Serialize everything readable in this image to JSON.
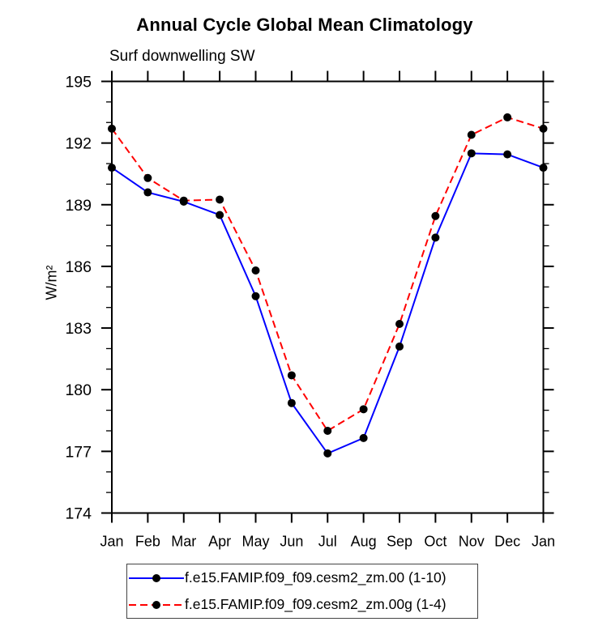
{
  "chart_data": {
    "type": "line",
    "title": "Annual Cycle Global Mean Climatology",
    "subtitle": "Surf downwelling SW",
    "ylabel": "W/m²",
    "xlabel": "",
    "categories": [
      "Jan",
      "Feb",
      "Mar",
      "Apr",
      "May",
      "Jun",
      "Jul",
      "Aug",
      "Sep",
      "Oct",
      "Nov",
      "Dec",
      "Jan"
    ],
    "ylim": [
      174,
      195
    ],
    "y_major_step": 3,
    "y_minor_step": 1,
    "grid": false,
    "legend_position": "bottom",
    "frame_color": "#000000",
    "series": [
      {
        "name": "f.e15.FAMIP.f09_f09.cesm2_zm.00 (1-10)",
        "color": "#0000ff",
        "line_style": "solid",
        "marker": "filled-circle",
        "marker_color": "#000000",
        "values": [
          190.8,
          189.6,
          189.15,
          188.5,
          184.55,
          179.35,
          176.9,
          177.65,
          182.1,
          187.4,
          191.5,
          191.45,
          190.8
        ]
      },
      {
        "name": "f.e15.FAMIP.f09_f09.cesm2_zm.00g (1-4)",
        "color": "#ff0000",
        "line_style": "dashed",
        "marker": "filled-circle",
        "marker_color": "#000000",
        "values": [
          192.7,
          190.3,
          189.2,
          189.25,
          185.8,
          180.7,
          178.0,
          179.05,
          183.2,
          188.45,
          192.4,
          193.25,
          192.7
        ]
      }
    ]
  }
}
